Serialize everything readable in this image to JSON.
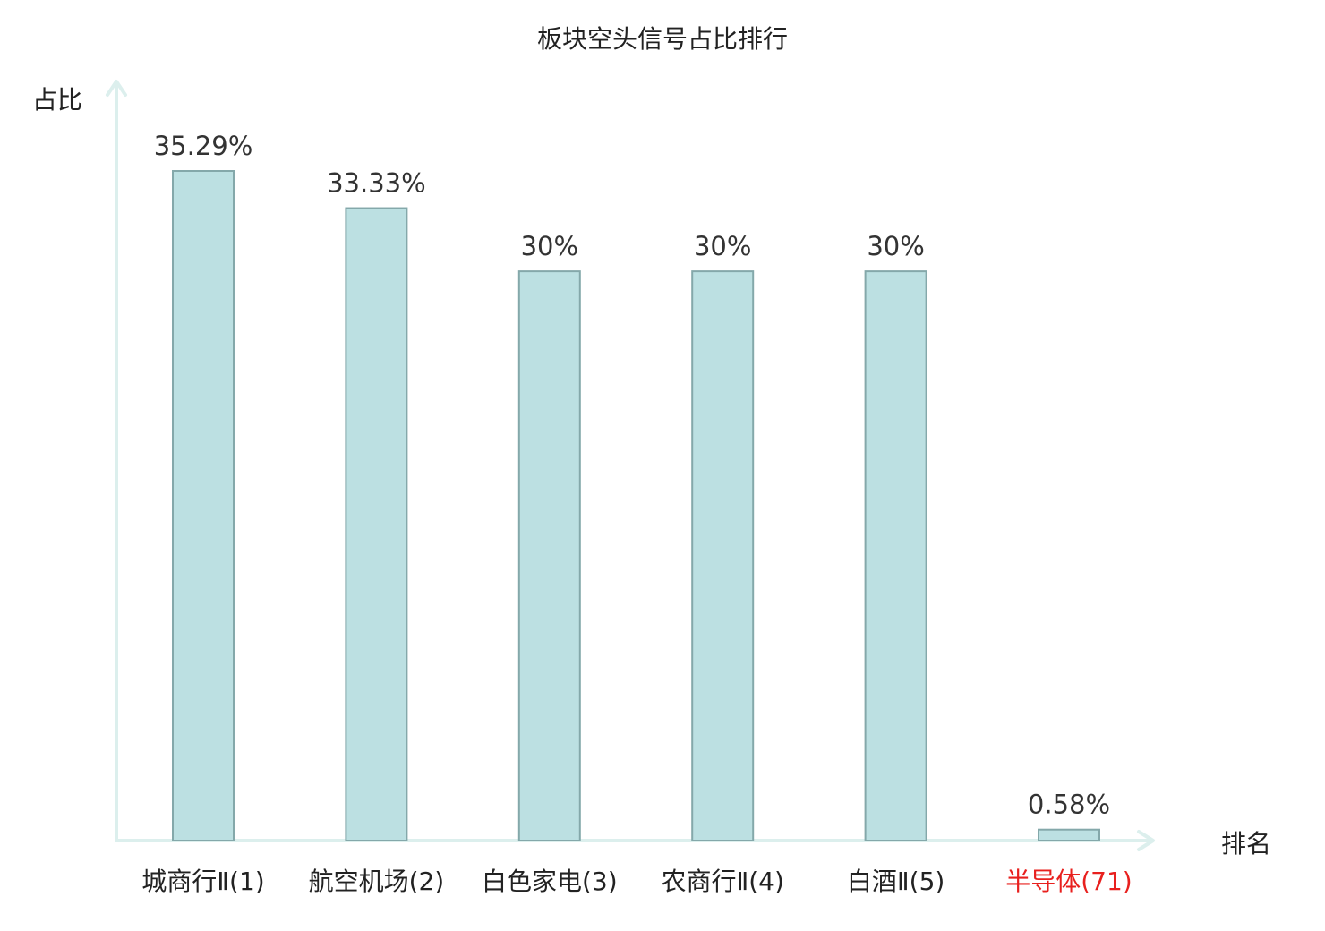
{
  "chart_data": {
    "type": "bar",
    "title": "板块空头信号占比排行",
    "ylabel": "占比",
    "xlabel": "排名",
    "categories": [
      "城商行Ⅱ(1)",
      "航空机场(2)",
      "白色家电(3)",
      "农商行Ⅱ(4)",
      "白酒Ⅱ(5)",
      "半导体(71)"
    ],
    "values": [
      35.29,
      33.33,
      30,
      30,
      30,
      0.58
    ],
    "value_labels": [
      "35.29%",
      "33.33%",
      "30%",
      "30%",
      "30%",
      "0.58%"
    ],
    "highlight_index": 5,
    "ylim": [
      0,
      35.29
    ],
    "grid": false,
    "legend": "none"
  },
  "colors": {
    "bar_fill": "#bce0e2",
    "bar_stroke": "#84a8aa",
    "axis": "#dcefed",
    "text": "#222222",
    "highlight_text": "#e8201e"
  }
}
